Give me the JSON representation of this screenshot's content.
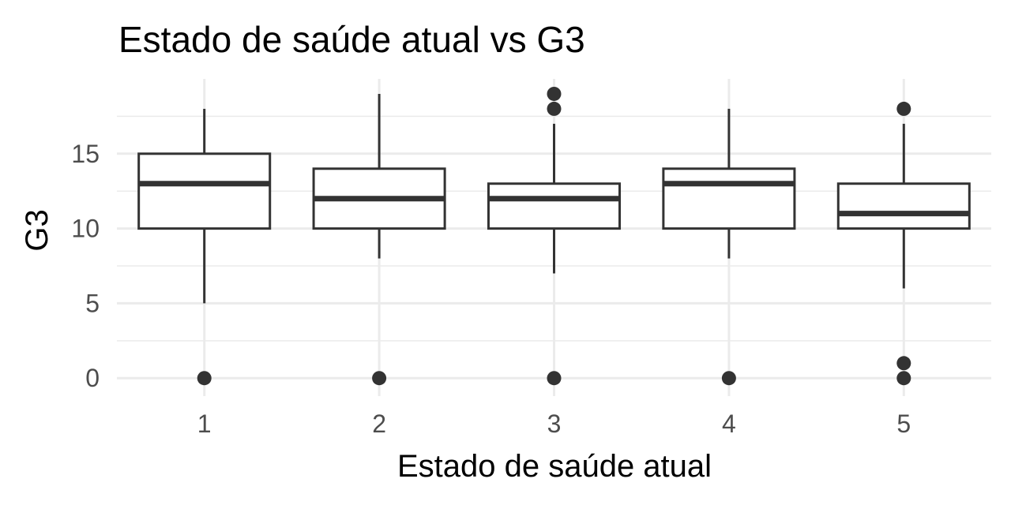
{
  "chart_data": {
    "type": "boxplot",
    "title": "Estado de saúde atual vs  G3",
    "xlabel": "Estado de saúde atual",
    "ylabel": "G3",
    "categories": [
      "1",
      "2",
      "3",
      "4",
      "5"
    ],
    "ylim": [
      -1.2,
      20
    ],
    "yticks": [
      0,
      5,
      10,
      15
    ],
    "yticks_labels": [
      "0",
      "5",
      "10",
      "15"
    ],
    "grid": true,
    "colors": {
      "box_stroke": "#333333",
      "grid": "#ebebeb",
      "tick_text": "#4d4d4d"
    },
    "boxes": [
      {
        "category": "1",
        "whisker_low": 5,
        "q1": 10,
        "median": 13,
        "q3": 15,
        "whisker_high": 18,
        "outliers": [
          0
        ]
      },
      {
        "category": "2",
        "whisker_low": 8,
        "q1": 10,
        "median": 12,
        "q3": 14,
        "whisker_high": 19,
        "outliers": [
          0
        ]
      },
      {
        "category": "3",
        "whisker_low": 7,
        "q1": 10,
        "median": 12,
        "q3": 13,
        "whisker_high": 17,
        "outliers": [
          0,
          18,
          19
        ]
      },
      {
        "category": "4",
        "whisker_low": 8,
        "q1": 10,
        "median": 13,
        "q3": 14,
        "whisker_high": 18,
        "outliers": [
          0
        ]
      },
      {
        "category": "5",
        "whisker_low": 6,
        "q1": 10,
        "median": 11,
        "q3": 13,
        "whisker_high": 17,
        "outliers": [
          0,
          1,
          18
        ]
      }
    ]
  }
}
